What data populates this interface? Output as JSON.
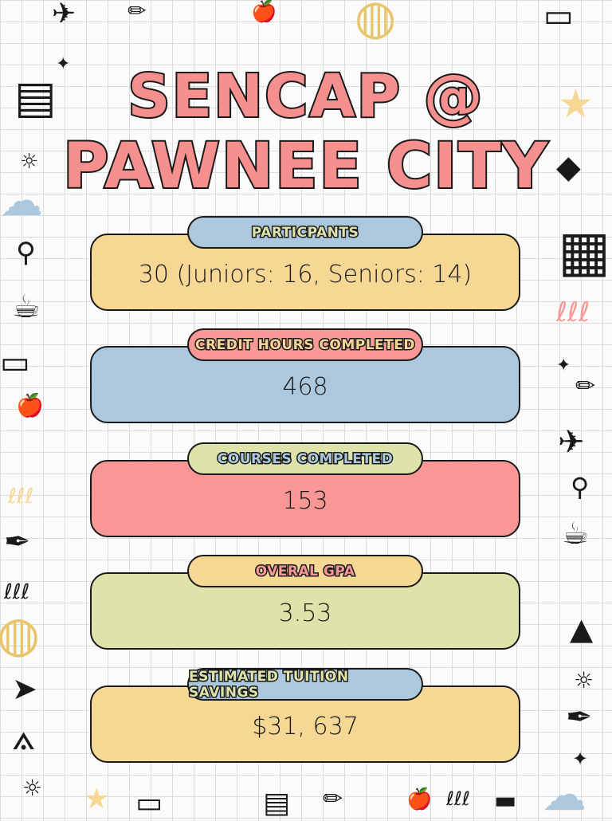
{
  "title": {
    "line1": "SENCAP @",
    "line2": "PAWNEE CITY"
  },
  "colors": {
    "yellow": "#f6d794",
    "blue": "#abc8de",
    "pink": "#f89795",
    "green": "#dee4a9",
    "title": "#f6908e"
  },
  "stats": [
    {
      "label": "PARTICPANTS",
      "value": "30 (Juniors: 16, Seniors: 14)"
    },
    {
      "label": "CREDIT HOURS COMPLETED",
      "value": "468"
    },
    {
      "label": "COURSES COMPLETED",
      "value": "153"
    },
    {
      "label": "OVERAL GPA",
      "value": "3.53"
    },
    {
      "label": "ESTIMATED TUITION SAVINGS",
      "value": "$31, 637"
    }
  ],
  "decorations": [
    "airplane-icon",
    "pencil-icon",
    "apple-icon",
    "globe-icon",
    "bus-icon",
    "star-icon",
    "sparkle-icon",
    "book-icon",
    "lightbulb-icon",
    "cloud-icon",
    "pushpin-icon",
    "mug-icon",
    "graduation-cap-icon",
    "calculator-icon",
    "spring-icon",
    "pen-icon",
    "compass-icon",
    "paper-plane-icon",
    "cone-icon",
    "ruler-icon"
  ]
}
